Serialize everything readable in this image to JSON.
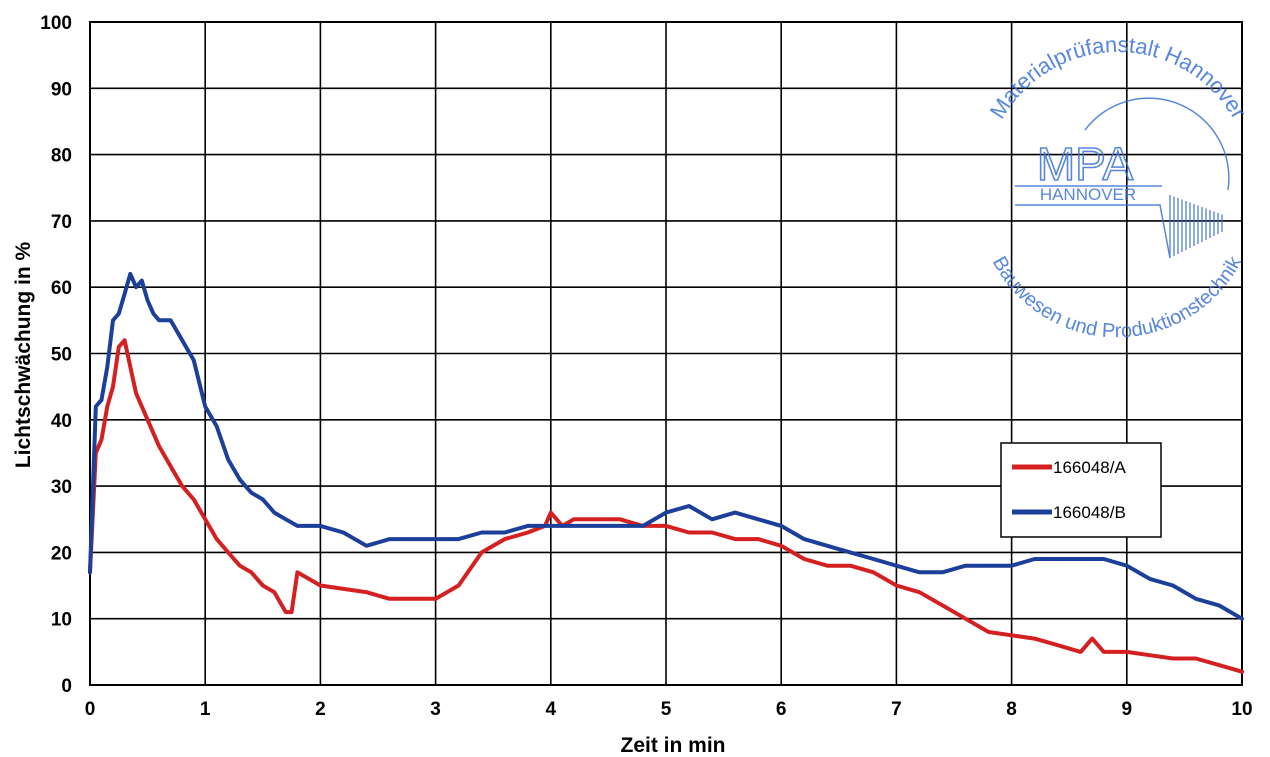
{
  "chart_data": {
    "type": "line",
    "title": "",
    "xlabel": "Zeit in min",
    "ylabel": "Lichtschwächung in %",
    "xlim": [
      0,
      10
    ],
    "ylim": [
      0,
      100
    ],
    "x_ticks": [
      "0",
      "1",
      "2",
      "3",
      "4",
      "5",
      "6",
      "7",
      "8",
      "9",
      "10"
    ],
    "y_ticks": [
      "0",
      "10",
      "20",
      "30",
      "40",
      "50",
      "60",
      "70",
      "80",
      "90",
      "100"
    ],
    "grid": true,
    "legend_position": "right",
    "series": [
      {
        "name": "166048/A",
        "color": "#d42020",
        "points": [
          [
            0,
            17
          ],
          [
            0.05,
            35
          ],
          [
            0.1,
            37
          ],
          [
            0.15,
            42
          ],
          [
            0.2,
            45
          ],
          [
            0.25,
            51
          ],
          [
            0.3,
            52
          ],
          [
            0.35,
            48
          ],
          [
            0.4,
            44
          ],
          [
            0.5,
            40
          ],
          [
            0.6,
            36
          ],
          [
            0.7,
            33
          ],
          [
            0.8,
            30
          ],
          [
            0.9,
            28
          ],
          [
            1.0,
            25
          ],
          [
            1.1,
            22
          ],
          [
            1.2,
            20
          ],
          [
            1.3,
            18
          ],
          [
            1.4,
            17
          ],
          [
            1.5,
            15
          ],
          [
            1.6,
            14
          ],
          [
            1.7,
            11
          ],
          [
            1.75,
            11
          ],
          [
            1.8,
            17
          ],
          [
            1.9,
            16
          ],
          [
            2.0,
            15
          ],
          [
            2.2,
            14.5
          ],
          [
            2.4,
            14
          ],
          [
            2.6,
            13
          ],
          [
            2.8,
            13
          ],
          [
            3.0,
            13
          ],
          [
            3.2,
            15
          ],
          [
            3.4,
            20
          ],
          [
            3.6,
            22
          ],
          [
            3.8,
            23
          ],
          [
            3.95,
            24
          ],
          [
            4.0,
            26
          ],
          [
            4.1,
            24
          ],
          [
            4.2,
            25
          ],
          [
            4.4,
            25
          ],
          [
            4.6,
            25
          ],
          [
            4.8,
            24
          ],
          [
            5.0,
            24
          ],
          [
            5.2,
            23
          ],
          [
            5.4,
            23
          ],
          [
            5.6,
            22
          ],
          [
            5.8,
            22
          ],
          [
            6.0,
            21
          ],
          [
            6.2,
            19
          ],
          [
            6.4,
            18
          ],
          [
            6.6,
            18
          ],
          [
            6.8,
            17
          ],
          [
            7.0,
            15
          ],
          [
            7.2,
            14
          ],
          [
            7.4,
            12
          ],
          [
            7.6,
            10
          ],
          [
            7.8,
            8
          ],
          [
            8.0,
            7.5
          ],
          [
            8.2,
            7
          ],
          [
            8.4,
            6
          ],
          [
            8.6,
            5
          ],
          [
            8.7,
            7
          ],
          [
            8.8,
            5
          ],
          [
            9.0,
            5
          ],
          [
            9.2,
            4.5
          ],
          [
            9.4,
            4
          ],
          [
            9.6,
            4
          ],
          [
            9.8,
            3
          ],
          [
            10.0,
            2
          ]
        ]
      },
      {
        "name": "166048/B",
        "color": "#1c3f9a",
        "points": [
          [
            0,
            17
          ],
          [
            0.05,
            42
          ],
          [
            0.1,
            43
          ],
          [
            0.15,
            48
          ],
          [
            0.2,
            55
          ],
          [
            0.25,
            56
          ],
          [
            0.3,
            59
          ],
          [
            0.35,
            62
          ],
          [
            0.4,
            60
          ],
          [
            0.45,
            61
          ],
          [
            0.5,
            58
          ],
          [
            0.55,
            56
          ],
          [
            0.6,
            55
          ],
          [
            0.7,
            55
          ],
          [
            0.8,
            52
          ],
          [
            0.9,
            49
          ],
          [
            1.0,
            42
          ],
          [
            1.1,
            39
          ],
          [
            1.2,
            34
          ],
          [
            1.3,
            31
          ],
          [
            1.4,
            29
          ],
          [
            1.5,
            28
          ],
          [
            1.6,
            26
          ],
          [
            1.7,
            25
          ],
          [
            1.8,
            24
          ],
          [
            2.0,
            24
          ],
          [
            2.2,
            23
          ],
          [
            2.4,
            21
          ],
          [
            2.6,
            22
          ],
          [
            2.8,
            22
          ],
          [
            3.0,
            22
          ],
          [
            3.2,
            22
          ],
          [
            3.4,
            23
          ],
          [
            3.6,
            23
          ],
          [
            3.8,
            24
          ],
          [
            4.0,
            24
          ],
          [
            4.2,
            24
          ],
          [
            4.4,
            24
          ],
          [
            4.6,
            24
          ],
          [
            4.8,
            24
          ],
          [
            5.0,
            26
          ],
          [
            5.2,
            27
          ],
          [
            5.4,
            25
          ],
          [
            5.6,
            26
          ],
          [
            5.8,
            25
          ],
          [
            6.0,
            24
          ],
          [
            6.2,
            22
          ],
          [
            6.4,
            21
          ],
          [
            6.6,
            20
          ],
          [
            6.8,
            19
          ],
          [
            7.0,
            18
          ],
          [
            7.2,
            17
          ],
          [
            7.4,
            17
          ],
          [
            7.6,
            18
          ],
          [
            7.8,
            18
          ],
          [
            8.0,
            18
          ],
          [
            8.2,
            19
          ],
          [
            8.4,
            19
          ],
          [
            8.6,
            19
          ],
          [
            8.8,
            19
          ],
          [
            9.0,
            18
          ],
          [
            9.2,
            16
          ],
          [
            9.4,
            15
          ],
          [
            9.6,
            13
          ],
          [
            9.8,
            12
          ],
          [
            10.0,
            10
          ]
        ]
      }
    ]
  },
  "stamp": {
    "outer_top": "Materialprüfanstalt Hannover",
    "outer_bottom": "Bauwesen und Produktionstechnik",
    "logo": "MPA",
    "logo_sub": "HANNOVER",
    "color": "#3a73d6"
  }
}
